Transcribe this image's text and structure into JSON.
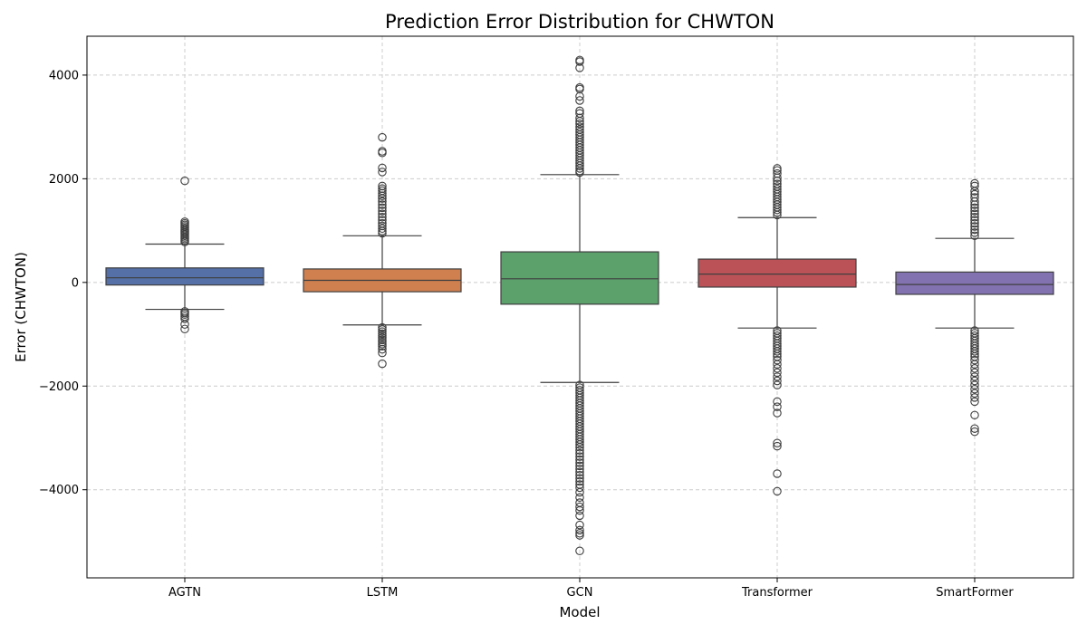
{
  "chart_data": {
    "type": "box",
    "title": "Prediction Error Distribution for CHWTON",
    "xlabel": "Model",
    "ylabel": "Error (CHWTON)",
    "ylim": [
      -5700,
      4750
    ],
    "yticks": [
      4000,
      2000,
      0,
      -2000,
      -4000
    ],
    "ytick_labels": [
      "4000",
      "2000",
      "0",
      "−2000",
      "−4000"
    ],
    "grid": true,
    "categories": [
      "AGTN",
      "LSTM",
      "GCN",
      "Transformer",
      "SmartFormer"
    ],
    "series": [
      {
        "category": "AGTN",
        "color": "#5470a6",
        "whisker_low": -520,
        "q1": -50,
        "median": 90,
        "q3": 280,
        "whisker_high": 740,
        "outliers": [
          1960,
          1170,
          1140,
          1110,
          1080,
          1050,
          1020,
          990,
          960,
          930,
          900,
          870,
          840,
          810,
          780,
          -560,
          -590,
          -620,
          -660,
          -700,
          -810,
          -900
        ]
      },
      {
        "category": "LSTM",
        "color": "#d0804f",
        "whisker_low": -820,
        "q1": -180,
        "median": 40,
        "q3": 260,
        "whisker_high": 900,
        "outliers": [
          2800,
          2530,
          2500,
          2210,
          2130,
          1860,
          1810,
          1770,
          1720,
          1670,
          1620,
          1560,
          1500,
          1440,
          1380,
          1320,
          1260,
          1200,
          1140,
          1090,
          1040,
          990,
          950,
          -870,
          -910,
          -950,
          -990,
          -1030,
          -1070,
          -1110,
          -1150,
          -1190,
          -1230,
          -1290,
          -1360,
          -1570
        ]
      },
      {
        "category": "GCN",
        "color": "#5ca06c",
        "whisker_low": -1930,
        "q1": -420,
        "median": 70,
        "q3": 590,
        "whisker_high": 2080,
        "outliers": [
          4290,
          4260,
          4140,
          3760,
          3730,
          3590,
          3510,
          3310,
          3260,
          3170,
          3110,
          3060,
          3000,
          2950,
          2900,
          2850,
          2800,
          2750,
          2700,
          2650,
          2600,
          2550,
          2500,
          2450,
          2400,
          2350,
          2300,
          2250,
          2200,
          2150,
          2120,
          -1980,
          -2030,
          -2080,
          -2130,
          -2180,
          -2230,
          -2280,
          -2330,
          -2380,
          -2430,
          -2480,
          -2530,
          -2580,
          -2630,
          -2680,
          -2730,
          -2780,
          -2830,
          -2880,
          -2930,
          -2980,
          -3030,
          -3080,
          -3130,
          -3180,
          -3240,
          -3300,
          -3360,
          -3420,
          -3480,
          -3540,
          -3600,
          -3660,
          -3720,
          -3780,
          -3840,
          -3900,
          -3960,
          -4050,
          -4150,
          -4250,
          -4330,
          -4400,
          -4500,
          -4680,
          -4780,
          -4840,
          -4880,
          -5180
        ]
      },
      {
        "category": "Transformer",
        "color": "#bb5257",
        "whisker_low": -880,
        "q1": -90,
        "median": 160,
        "q3": 450,
        "whisker_high": 1250,
        "outliers": [
          2200,
          2160,
          2100,
          2020,
          1960,
          1900,
          1850,
          1800,
          1750,
          1700,
          1650,
          1600,
          1550,
          1500,
          1450,
          1400,
          1350,
          1300,
          -930,
          -980,
          -1030,
          -1080,
          -1130,
          -1180,
          -1230,
          -1280,
          -1330,
          -1380,
          -1430,
          -1500,
          -1580,
          -1660,
          -1740,
          -1820,
          -1900,
          -1980,
          -2300,
          -2400,
          -2520,
          -3100,
          -3160,
          -3690,
          -4030
        ]
      },
      {
        "category": "SmartFormer",
        "color": "#8272b0",
        "whisker_low": -880,
        "q1": -230,
        "median": -40,
        "q3": 200,
        "whisker_high": 850,
        "outliers": [
          1910,
          1860,
          1760,
          1700,
          1640,
          1560,
          1500,
          1440,
          1380,
          1320,
          1260,
          1200,
          1140,
          1080,
          1020,
          960,
          900,
          -930,
          -980,
          -1030,
          -1080,
          -1130,
          -1180,
          -1230,
          -1280,
          -1330,
          -1380,
          -1430,
          -1500,
          -1580,
          -1660,
          -1740,
          -1820,
          -1900,
          -1980,
          -2060,
          -2140,
          -2220,
          -2300,
          -2560,
          -2820,
          -2880
        ]
      }
    ]
  }
}
